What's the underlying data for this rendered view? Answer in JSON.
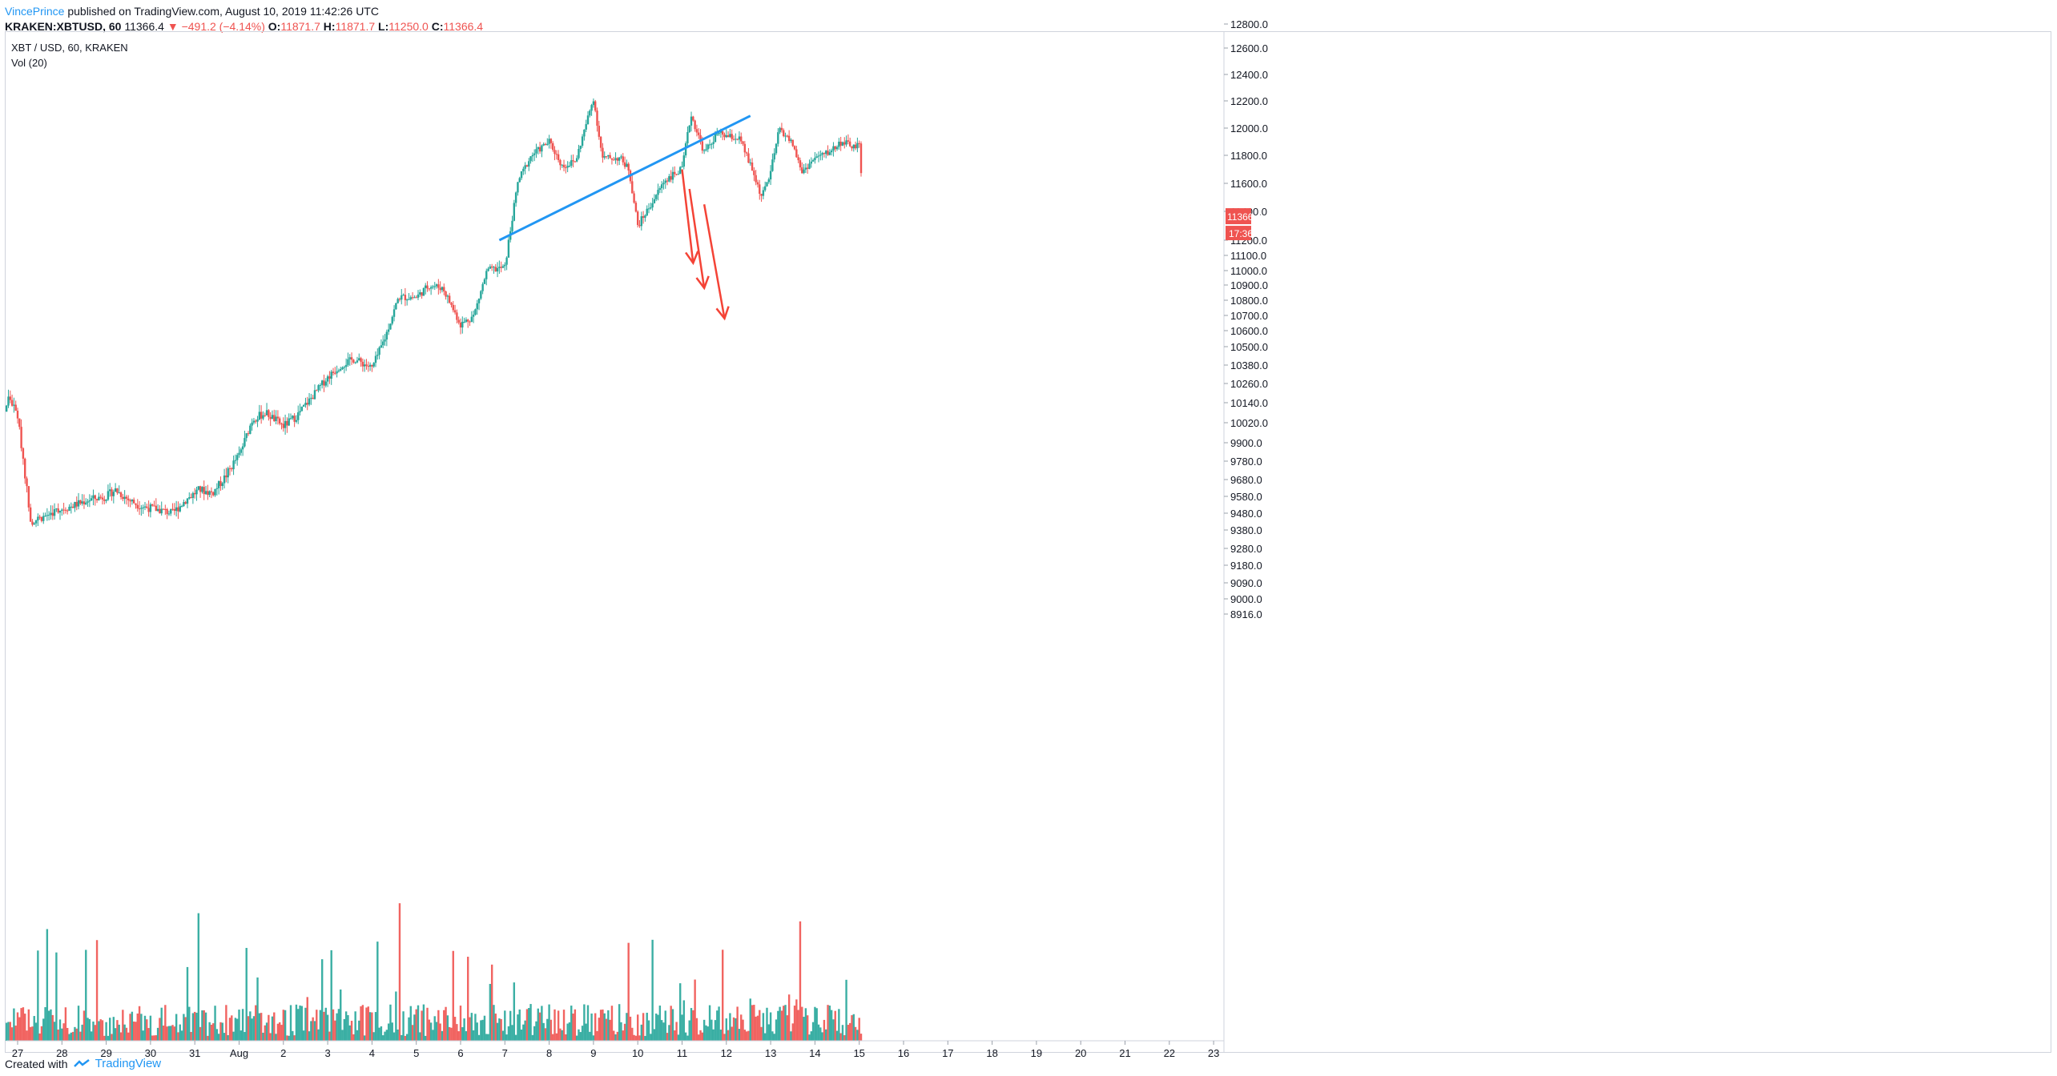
{
  "header": {
    "author": "VincePrince",
    "published": " published on TradingView.com, August 10, 2019 11:42:26 UTC"
  },
  "symbol_line": {
    "symbol": "KRAKEN:XBTUSD, 60",
    "price": "11366.4",
    "arrow": "▼",
    "change": "−491.2 (−4.14%)",
    "o_label": "O:",
    "o_val": "11871.7",
    "h_label": "H:",
    "h_val": "11871.7",
    "l_label": "L:",
    "l_val": "11250.0",
    "c_label": "C:",
    "c_val": "11366.4"
  },
  "pair_legend": "XBT / USD, 60, KRAKEN",
  "vol_legend": "Vol (20)",
  "footer": {
    "created_with": "Created with",
    "brand": "TradingView",
    "logo_icon": "tradingview-logo-icon"
  },
  "colors": {
    "up": "#26a69a",
    "down": "#ef5350",
    "trendline": "#2196f3",
    "arrows": "#f44336",
    "grid_border": "#cfd3dc"
  },
  "chart_data": {
    "type": "candlestick",
    "symbol": "XBT / USD",
    "timeframe": "60",
    "exchange": "KRAKEN",
    "y_axis_ticks": [
      "12800.0",
      "12600.0",
      "12400.0",
      "12200.0",
      "12000.0",
      "11800.0",
      "11600.0",
      "11400.0",
      "11200.0",
      "11100.0",
      "11000.0",
      "10900.0",
      "10800.0",
      "10700.0",
      "10600.0",
      "10500.0",
      "10380.0",
      "10260.0",
      "10140.0",
      "10020.0",
      "9900.0",
      "9780.0",
      "9680.0",
      "9580.0",
      "9480.0",
      "9380.0",
      "9280.0",
      "9180.0",
      "9090.0",
      "9000.0",
      "8916.0"
    ],
    "x_axis_ticks": [
      "27",
      "28",
      "29",
      "30",
      "31",
      "Aug",
      "2",
      "3",
      "4",
      "5",
      "6",
      "7",
      "8",
      "9",
      "10",
      "11",
      "12",
      "13",
      "14",
      "15",
      "16",
      "17",
      "18",
      "19",
      "20",
      "21",
      "22",
      "23"
    ],
    "last_price_label": "11366.4",
    "countdown_label": "17:36",
    "price_path": [
      [
        "26",
        9790
      ],
      [
        "26.5",
        9850
      ],
      [
        "26.8",
        10180
      ],
      [
        "27.0",
        10060
      ],
      [
        "27.3",
        9430
      ],
      [
        "27.6",
        9460
      ],
      [
        "27.9",
        9500
      ],
      [
        "28.2",
        9520
      ],
      [
        "28.6",
        9560
      ],
      [
        "29.0",
        9580
      ],
      [
        "29.2",
        9620
      ],
      [
        "29.5",
        9560
      ],
      [
        "29.8",
        9520
      ],
      [
        "30.2",
        9500
      ],
      [
        "30.5",
        9480
      ],
      [
        "30.8",
        9560
      ],
      [
        "31.1",
        9620
      ],
      [
        "31.4",
        9600
      ],
      [
        "31.7",
        9700
      ],
      [
        "32.0",
        9820
      ],
      [
        "32.3",
        10040
      ],
      [
        "32.6",
        10080
      ],
      [
        "33.0",
        10000
      ],
      [
        "33.3",
        10060
      ],
      [
        "33.6",
        10160
      ],
      [
        "34.0",
        10300
      ],
      [
        "34.3",
        10380
      ],
      [
        "34.6",
        10420
      ],
      [
        "35.0",
        10360
      ],
      [
        "35.3",
        10560
      ],
      [
        "35.6",
        10820
      ],
      [
        "36.0",
        10820
      ],
      [
        "36.3",
        10900
      ],
      [
        "36.6",
        10880
      ],
      [
        "37.0",
        10640
      ],
      [
        "37.3",
        10700
      ],
      [
        "37.6",
        11000
      ],
      [
        "38.0",
        11020
      ],
      [
        "38.3",
        11620
      ],
      [
        "38.6",
        11800
      ],
      [
        "39.0",
        11900
      ],
      [
        "39.3",
        11720
      ],
      [
        "39.6",
        11760
      ],
      [
        "40.0",
        12220
      ],
      [
        "40.2",
        11780
      ],
      [
        "40.6",
        11780
      ],
      [
        "40.8",
        11700
      ],
      [
        "41.0",
        11300
      ],
      [
        "41.3",
        11450
      ],
      [
        "41.6",
        11620
      ],
      [
        "42.0",
        11700
      ],
      [
        "42.2",
        12100
      ],
      [
        "42.5",
        11820
      ],
      [
        "42.8",
        11960
      ],
      [
        "43.0",
        11940
      ],
      [
        "43.3",
        11920
      ],
      [
        "43.6",
        11680
      ],
      [
        "43.8",
        11500
      ],
      [
        "44.0",
        11680
      ],
      [
        "44.2",
        12000
      ],
      [
        "44.5",
        11880
      ],
      [
        "44.7",
        11680
      ],
      [
        "45.0",
        11780
      ],
      [
        "45.3",
        11820
      ],
      [
        "45.6",
        11900
      ],
      [
        "45.9",
        11860
      ],
      [
        "46.0",
        11871.7
      ],
      [
        "46.1",
        11366.4
      ]
    ],
    "volume_note": "Vol (20)",
    "annotations": {
      "trendline": {
        "from": [
          "2019-08-06 21:00",
          11200
        ],
        "to": [
          "2019-08-12 13:00",
          12090
        ],
        "color": "blue"
      },
      "arrows": [
        {
          "from": [
            "2019-08-11 00:00",
            11700
          ],
          "to": [
            "2019-08-11 06:00",
            11050
          ],
          "color": "red"
        },
        {
          "from": [
            "2019-08-11 04:00",
            11560
          ],
          "to": [
            "2019-08-11 12:00",
            10880
          ],
          "color": "red"
        },
        {
          "from": [
            "2019-08-11 12:00",
            11450
          ],
          "to": [
            "2019-08-11 23:00",
            10680
          ],
          "color": "red"
        }
      ]
    }
  }
}
